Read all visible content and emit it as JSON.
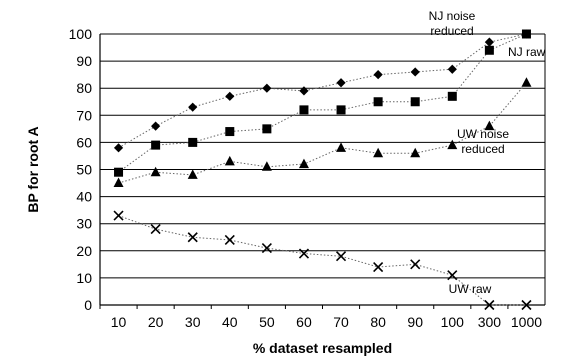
{
  "chart_data": {
    "type": "line",
    "xlabel": "% dataset resampled",
    "ylabel": "BP for root A",
    "categories": [
      "10",
      "20",
      "30",
      "40",
      "50",
      "60",
      "70",
      "80",
      "90",
      "100",
      "300",
      "1000"
    ],
    "ylim": [
      0,
      100
    ],
    "yticks": [
      0,
      10,
      20,
      30,
      40,
      50,
      60,
      70,
      80,
      90,
      100
    ],
    "grid": true,
    "series": [
      {
        "name": "NJ noise reduced",
        "marker": "diamond",
        "values": [
          58,
          66,
          73,
          77,
          80,
          79,
          82,
          85,
          86,
          87,
          97,
          100
        ]
      },
      {
        "name": "NJ raw",
        "marker": "square",
        "values": [
          49,
          59,
          60,
          64,
          65,
          72,
          72,
          75,
          75,
          77,
          94,
          100
        ]
      },
      {
        "name": "UW noise reduced",
        "marker": "triangle",
        "values": [
          45,
          49,
          48,
          53,
          51,
          52,
          58,
          56,
          56,
          59,
          66,
          82
        ]
      },
      {
        "name": "UW raw",
        "marker": "x",
        "values": [
          33,
          28,
          25,
          24,
          21,
          19,
          18,
          14,
          15,
          11,
          0,
          0
        ]
      }
    ],
    "annotations": [
      {
        "series": 0,
        "lines": [
          "NJ noise",
          "reduced"
        ]
      },
      {
        "series": 1,
        "lines": [
          "NJ raw"
        ]
      },
      {
        "series": 2,
        "lines": [
          "UW noise",
          "reduced"
        ]
      },
      {
        "series": 3,
        "lines": [
          "UW raw"
        ]
      }
    ]
  }
}
